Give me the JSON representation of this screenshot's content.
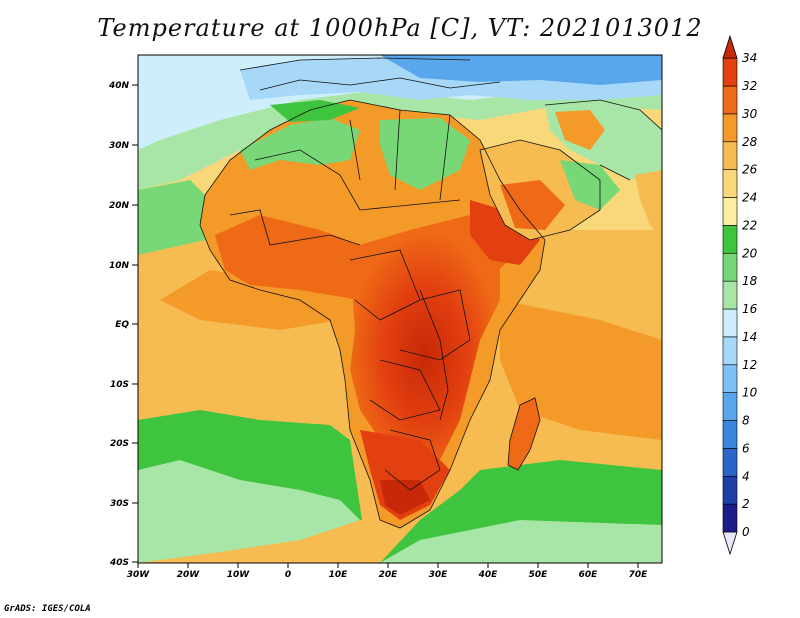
{
  "title": "Temperature at 1000hPa [C], VT: 2021013012",
  "credit": "GrADS: IGES/COLA",
  "map": {
    "lat_labels": [
      "40N",
      "30N",
      "20N",
      "10N",
      "EQ",
      "10S",
      "20S",
      "30S",
      "40S"
    ],
    "lon_labels": [
      "30W",
      "20W",
      "10W",
      "0",
      "10E",
      "20E",
      "30E",
      "40E",
      "50E",
      "60E",
      "70E"
    ]
  },
  "colorbar": {
    "levels": [
      "0",
      "2",
      "4",
      "6",
      "8",
      "10",
      "12",
      "14",
      "16",
      "18",
      "20",
      "22",
      "24",
      "26",
      "28",
      "30",
      "32",
      "34"
    ],
    "colors": [
      "#1c1c8a",
      "#1f3fa8",
      "#2a66c8",
      "#3a86dc",
      "#5aa6ec",
      "#7fc0f4",
      "#a8d8f8",
      "#cdeefa",
      "#a8e6a8",
      "#78d878",
      "#3ec43e",
      "#fbeea0",
      "#f8d878",
      "#f6bc52",
      "#f39a28",
      "#ef6a16",
      "#e24010",
      "#c82808"
    ]
  },
  "chart_data": {
    "type": "heatmap",
    "title": "Temperature at 1000hPa [C], VT: 2021013012",
    "x_range": [
      "30W",
      "75E"
    ],
    "y_range": [
      "40S",
      "45N"
    ],
    "color_levels": [
      0,
      2,
      4,
      6,
      8,
      10,
      12,
      14,
      16,
      18,
      20,
      22,
      24,
      26,
      28,
      30,
      32,
      34
    ]
  }
}
